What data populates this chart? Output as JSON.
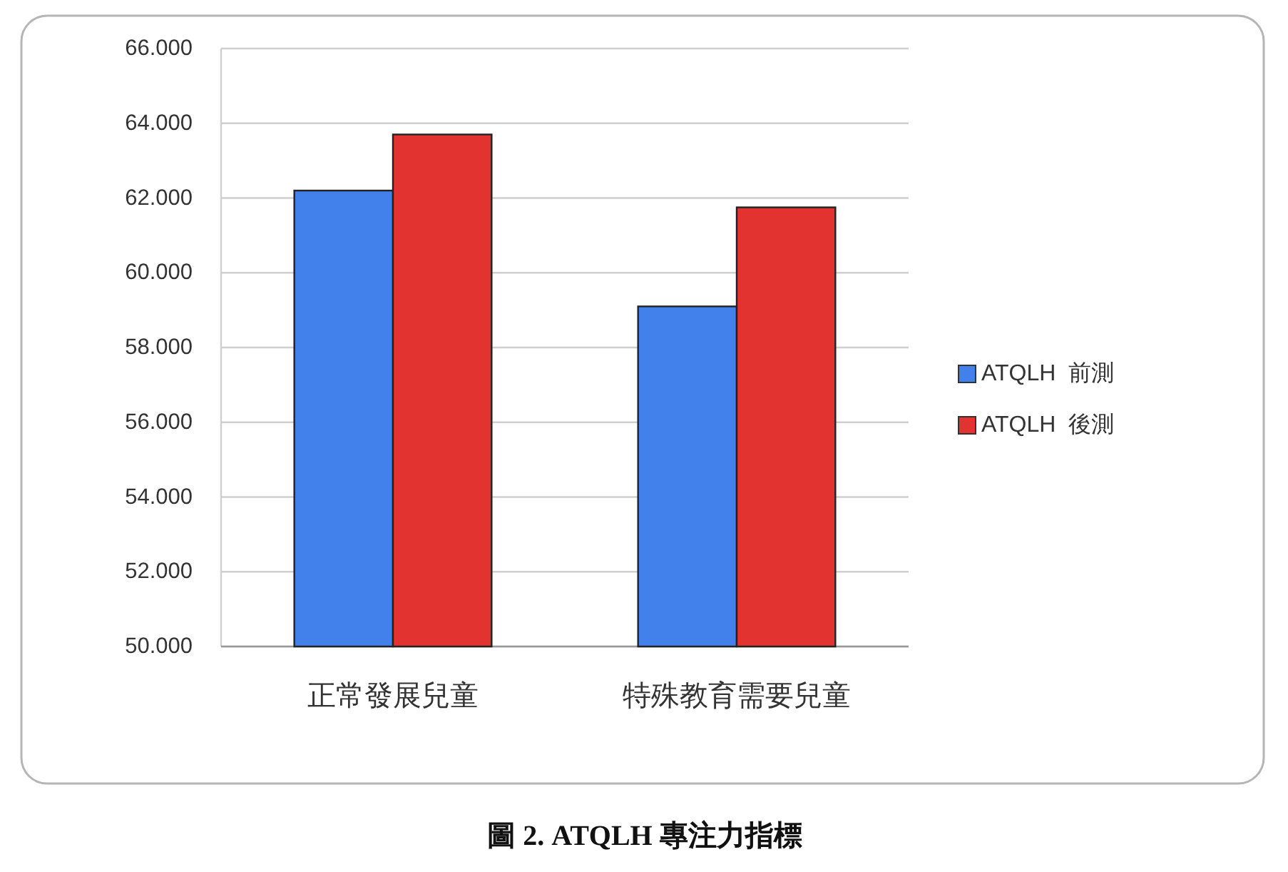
{
  "chart_data": {
    "type": "bar",
    "title": "圖 2. ATQLH 專注力指標",
    "categories": [
      "正常發展兒童",
      "特殊教育需要兒童"
    ],
    "series": [
      {
        "name": "ATQLH  前測",
        "color": "#4280ec",
        "values": [
          62.2,
          59.1
        ]
      },
      {
        "name": "ATQLH  後測",
        "color": "#e33330",
        "values": [
          63.7,
          61.75
        ]
      }
    ],
    "ylim": [
      50,
      66
    ],
    "yticks": [
      {
        "value": 50,
        "label": "50.000"
      },
      {
        "value": 52,
        "label": "52.000"
      },
      {
        "value": 54,
        "label": "54.000"
      },
      {
        "value": 56,
        "label": "56.000"
      },
      {
        "value": 58,
        "label": "58.000"
      },
      {
        "value": 60,
        "label": "60.000"
      },
      {
        "value": 62,
        "label": "62.000"
      },
      {
        "value": 64,
        "label": "64.000"
      },
      {
        "value": 66,
        "label": "66.000"
      }
    ],
    "grid": "y",
    "legend": "right"
  }
}
